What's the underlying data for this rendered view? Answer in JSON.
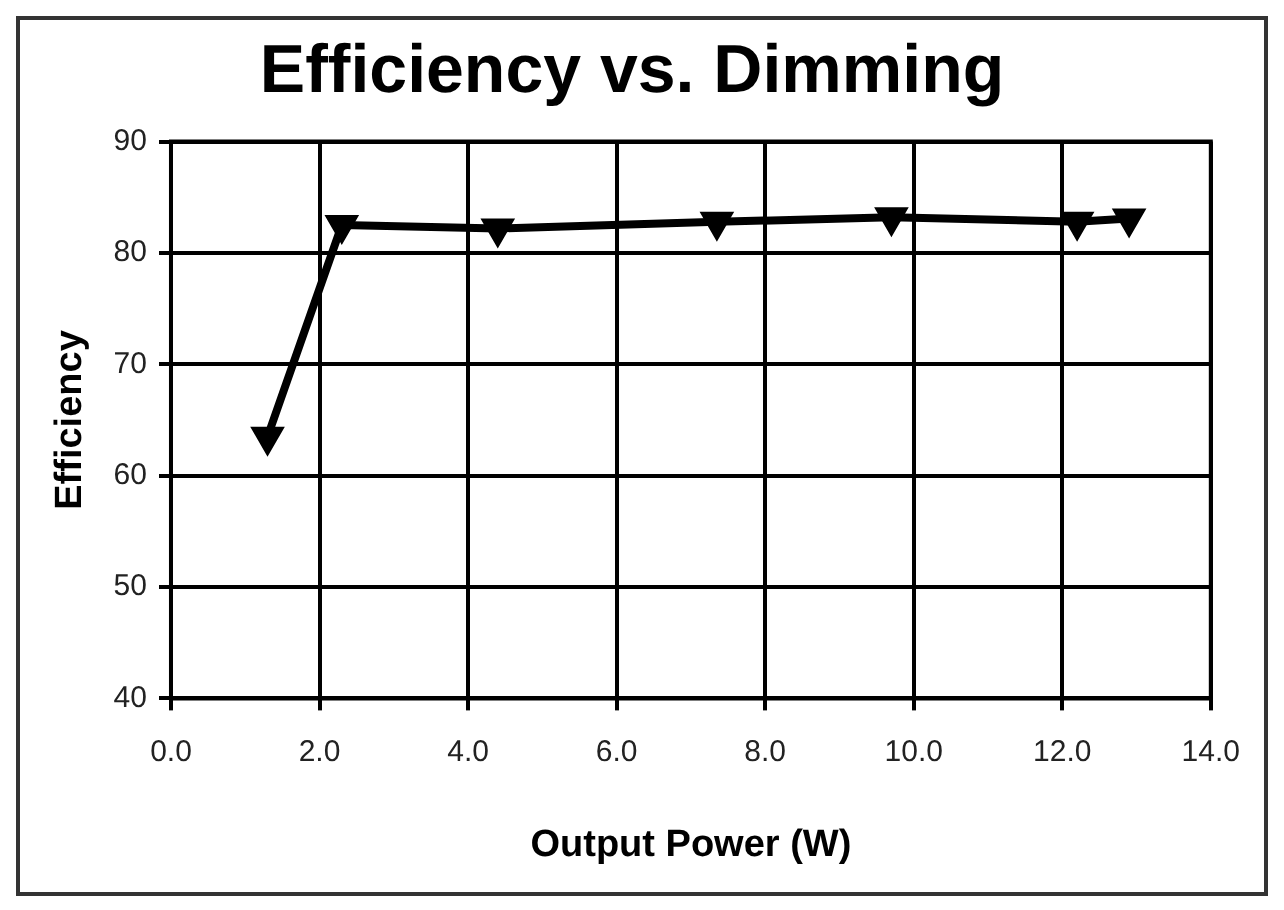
{
  "chart_data": {
    "type": "line",
    "title": "Efficiency vs. Dimming",
    "xlabel": "Output Power (W)",
    "ylabel": "Efficiency",
    "x": [
      1.3,
      2.3,
      4.4,
      7.35,
      9.7,
      12.2,
      12.9
    ],
    "series": [
      {
        "color": "#000000",
        "values": [
          63.5,
          82.5,
          82.2,
          82.8,
          83.2,
          82.8,
          83.1
        ]
      }
    ],
    "xlim": [
      0,
      14
    ],
    "xticks": [
      {
        "value": 0,
        "label": "0.0"
      },
      {
        "value": 2,
        "label": "2.0"
      },
      {
        "value": 4,
        "label": "4.0"
      },
      {
        "value": 6,
        "label": "6.0"
      },
      {
        "value": 8,
        "label": "8.0"
      },
      {
        "value": 10,
        "label": "10.0"
      },
      {
        "value": 12,
        "label": "12.0"
      },
      {
        "value": 14,
        "label": "14.0"
      }
    ],
    "ylim": [
      40,
      90
    ],
    "yticks": [
      40,
      50,
      60,
      70,
      80,
      90
    ],
    "grid": true,
    "marker": "triangle",
    "line_style": "solid"
  }
}
